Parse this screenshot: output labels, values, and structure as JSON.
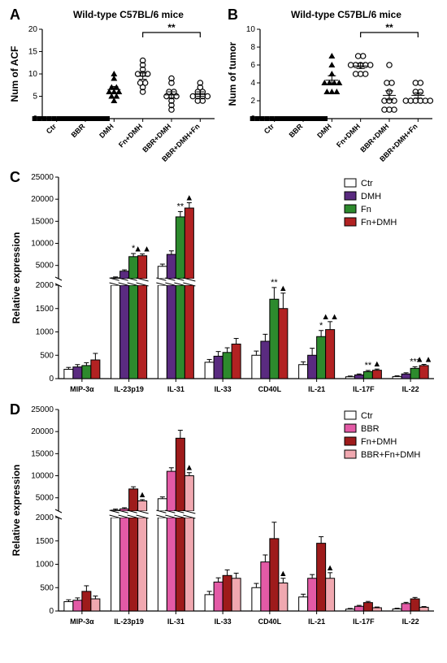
{
  "fig_width": 550,
  "fig_height": 816,
  "panelA": {
    "letter": "A",
    "title": "Wild-type C57BL/6 mice",
    "y_label": "Num of ACF",
    "y_min": 0,
    "y_max": 20,
    "y_tick_step": 5,
    "categories": [
      "Ctr",
      "BBR",
      "DMH",
      "Fn+DMH",
      "BBR+DMH",
      "BBR+DMH+Fn"
    ],
    "points": [
      [
        0,
        0,
        0,
        0,
        0,
        0,
        0,
        0,
        0,
        0
      ],
      [
        0,
        0,
        0,
        0,
        0,
        0,
        0,
        0,
        0,
        0
      ],
      [
        4,
        5,
        5,
        6,
        6,
        6,
        7,
        7,
        9,
        10
      ],
      [
        6,
        7,
        8,
        8,
        10,
        10,
        10,
        11,
        12,
        13
      ],
      [
        2,
        3,
        4,
        5,
        5,
        5,
        6,
        6,
        8,
        9
      ],
      [
        4,
        4,
        5,
        5,
        5,
        5,
        6,
        6,
        7,
        8
      ]
    ],
    "means": [
      0,
      0,
      6.5,
      9.5,
      5.3,
      5.5
    ],
    "sems": [
      0,
      0,
      0.7,
      0.7,
      0.7,
      0.5
    ],
    "markers": [
      "sq",
      "sq",
      "tri",
      "circ",
      "circ",
      "circ"
    ],
    "sig": {
      "label": "**",
      "cols": [
        3,
        5
      ]
    }
  },
  "panelB": {
    "letter": "B",
    "title": "Wild-type C57BL/6 mice",
    "y_label": "Num of tumor",
    "y_min": 0,
    "y_max": 10,
    "y_tick_step": 2,
    "categories": [
      "Ctr",
      "BBR",
      "DMH",
      "Fn+DMH",
      "BBR+DMH",
      "BBR+DMH+Fn"
    ],
    "points": [
      [
        0,
        0,
        0,
        0,
        0,
        0,
        0,
        0,
        0,
        0
      ],
      [
        0,
        0,
        0,
        0,
        0,
        0,
        0,
        0,
        0,
        0
      ],
      [
        3,
        3,
        3,
        4,
        4,
        4,
        4,
        5,
        6,
        7
      ],
      [
        5,
        5,
        5,
        6,
        6,
        6,
        6,
        6,
        7,
        7
      ],
      [
        1,
        1,
        1,
        2,
        2,
        2,
        3,
        4,
        4,
        6
      ],
      [
        2,
        2,
        2,
        2,
        2,
        2,
        3,
        3,
        4,
        4
      ]
    ],
    "means": [
      0,
      0,
      4.3,
      5.9,
      2.6,
      2.6
    ],
    "sems": [
      0,
      0,
      0.5,
      0.3,
      0.5,
      0.3
    ],
    "markers": [
      "sq",
      "sq",
      "tri",
      "circ",
      "circ",
      "circ"
    ],
    "sig": {
      "label": "**",
      "cols": [
        3,
        5
      ]
    }
  },
  "panelC": {
    "letter": "C",
    "y_label": "Relative expression",
    "categories": [
      "MIP-3α",
      "IL-23p19",
      "IL-31",
      "IL-33",
      "CD40L",
      "IL-21",
      "IL-17F",
      "IL-22"
    ],
    "series": [
      {
        "name": "Ctr",
        "color": "#ffffff"
      },
      {
        "name": "DMH",
        "color": "#5a2b80"
      },
      {
        "name": "Fn",
        "color": "#2d8a2d"
      },
      {
        "name": "Fn+DMH",
        "color": "#b22222"
      }
    ],
    "values": {
      "MIP-3α": [
        200,
        250,
        280,
        400
      ],
      "IL-23p19": [
        2200,
        3700,
        7000,
        7200
      ],
      "IL-31": [
        4800,
        7500,
        16000,
        18000
      ],
      "IL-33": [
        350,
        480,
        560,
        740
      ],
      "CD40L": [
        500,
        800,
        1700,
        1500
      ],
      "IL-21": [
        300,
        500,
        900,
        1050
      ],
      "IL-17F": [
        40,
        80,
        150,
        180
      ],
      "IL-22": [
        45,
        100,
        220,
        280
      ]
    },
    "errors": {
      "MIP-3α": [
        40,
        50,
        60,
        140
      ],
      "IL-23p19": [
        200,
        300,
        700,
        400
      ],
      "IL-31": [
        500,
        800,
        1200,
        1200
      ],
      "IL-33": [
        60,
        100,
        100,
        120
      ],
      "CD40L": [
        90,
        150,
        250,
        330
      ],
      "IL-21": [
        60,
        150,
        130,
        170
      ],
      "IL-17F": [
        15,
        20,
        25,
        25
      ],
      "IL-22": [
        15,
        25,
        35,
        25
      ]
    },
    "sig": {
      "IL-23p19": [
        "",
        "",
        "*",
        "▲▲"
      ],
      "IL-31": [
        "",
        "",
        "**",
        "▲"
      ],
      "CD40L": [
        "",
        "",
        "**",
        "▲"
      ],
      "IL-21": [
        "",
        "",
        "*",
        "▲▲"
      ],
      "IL-17F": [
        "",
        "",
        "**",
        "▲"
      ],
      "IL-22": [
        "",
        "",
        "***",
        "▲▲"
      ]
    },
    "break": {
      "low_max": 2000,
      "high_min": 2000,
      "high_max": 25000
    },
    "low_ticks": [
      0,
      500,
      1000,
      1500,
      2000
    ],
    "high_ticks": [
      5000,
      10000,
      15000,
      20000,
      25000
    ]
  },
  "panelD": {
    "letter": "D",
    "y_label": "Relative expression",
    "categories": [
      "MIP-3α",
      "IL-23p19",
      "IL-31",
      "IL-33",
      "CD40L",
      "IL-21",
      "IL-17F",
      "IL-22"
    ],
    "series": [
      {
        "name": "Ctr",
        "color": "#ffffff"
      },
      {
        "name": "BBR",
        "color": "#e35aa6"
      },
      {
        "name": "Fn+DMH",
        "color": "#9e1b1b"
      },
      {
        "name": "BBR+Fn+DMH",
        "color": "#f0a8b0"
      }
    ],
    "values": {
      "MIP-3α": [
        200,
        230,
        420,
        260
      ],
      "IL-23p19": [
        2200,
        2500,
        7000,
        4300
      ],
      "IL-31": [
        4800,
        11000,
        18500,
        10000
      ],
      "IL-33": [
        350,
        620,
        760,
        700
      ],
      "CD40L": [
        500,
        1050,
        1550,
        600
      ],
      "IL-21": [
        300,
        700,
        1450,
        700
      ],
      "IL-17F": [
        40,
        100,
        180,
        70
      ],
      "IL-22": [
        45,
        160,
        260,
        80
      ]
    },
    "errors": {
      "MIP-3α": [
        40,
        50,
        120,
        60
      ],
      "IL-23p19": [
        250,
        250,
        500,
        300
      ],
      "IL-31": [
        400,
        800,
        1800,
        700
      ],
      "IL-33": [
        70,
        90,
        120,
        110
      ],
      "CD40L": [
        90,
        150,
        350,
        100
      ],
      "IL-21": [
        60,
        80,
        140,
        120
      ],
      "IL-17F": [
        15,
        20,
        25,
        15
      ],
      "IL-22": [
        15,
        25,
        30,
        15
      ]
    },
    "sig": {
      "IL-23p19": [
        "",
        "",
        "",
        "▲"
      ],
      "IL-31": [
        "",
        "",
        "",
        "▲"
      ],
      "CD40L": [
        "",
        "",
        "",
        "▲"
      ],
      "IL-21": [
        "",
        "",
        "",
        "▲"
      ]
    },
    "break": {
      "low_max": 2000,
      "high_min": 2000,
      "high_max": 25000
    },
    "low_ticks": [
      0,
      500,
      1000,
      1500,
      2000
    ],
    "high_ticks": [
      5000,
      10000,
      15000,
      20000,
      25000
    ]
  }
}
